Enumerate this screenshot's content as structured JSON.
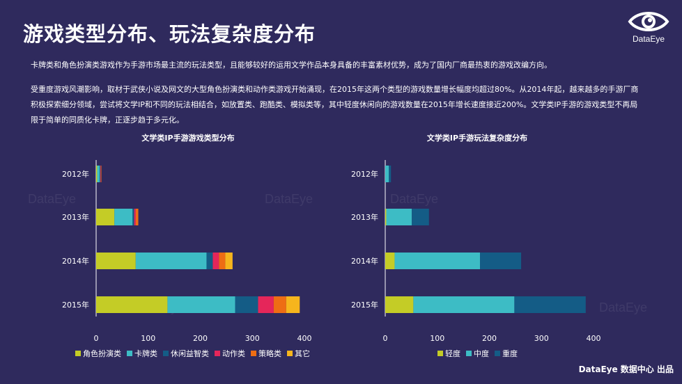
{
  "page": {
    "title": "游戏类型分布、玩法复杂度分布",
    "logo_text": "DataEye",
    "paragraphs": [
      "卡牌类和角色扮演类游戏作为手游市场最主流的玩法类型，且能够较好的运用文学作品本身具备的丰富素材优势，成为了国内厂商最热衷的游戏改编方向。",
      "受重度游戏风潮影响，取材于武侠小说及网文的大型角色扮演类和动作类游戏开始涌现，在2015年这两个类型的游戏数量增长幅度均超过80%。从2014年起，越来越多的手游厂商积极探索细分领域，尝试将文学IP和不同的玩法相结合，如放置类、跑酷类、模拟类等，其中轻度休闲向的游戏数量在2015年增长速度接近200%。文学类IP手游的游戏类型不再局限于简单的同质化卡牌，正逐步趋于多元化。"
    ],
    "watermark": "DataEye",
    "footer": "DataEye 数据中心 出品"
  },
  "chart_data": [
    {
      "type": "bar",
      "orientation": "horizontal",
      "stacked": true,
      "title": "文学类IP手游游戏类型分布",
      "categories": [
        "2012年",
        "2013年",
        "2014年",
        "2015年"
      ],
      "xlim": [
        0,
        400
      ],
      "xticks": [
        0,
        100,
        200,
        300,
        400
      ],
      "legend": "bottom",
      "series": [
        {
          "name": "角色扮演类",
          "color": "#c4cc26",
          "values": [
            2,
            35,
            76,
            137
          ]
        },
        {
          "name": "卡牌类",
          "color": "#3dbcc5",
          "values": [
            5,
            35,
            136,
            130
          ]
        },
        {
          "name": "休闲益智类",
          "color": "#145c86",
          "values": [
            1,
            3,
            12,
            44
          ]
        },
        {
          "name": "动作类",
          "color": "#e5265a",
          "values": [
            1,
            3,
            12,
            30
          ]
        },
        {
          "name": "策略类",
          "color": "#ee6d14",
          "values": [
            1,
            5,
            12,
            24
          ]
        },
        {
          "name": "其它",
          "color": "#f6b51d",
          "values": [
            0,
            0,
            14,
            26
          ]
        }
      ]
    },
    {
      "type": "bar",
      "orientation": "horizontal",
      "stacked": true,
      "title": "文学类IP手游玩法复杂度分布",
      "categories": [
        "2012年",
        "2013年",
        "2014年",
        "2015年"
      ],
      "xlim": [
        0,
        400
      ],
      "xticks": [
        0,
        100,
        200,
        300,
        400
      ],
      "legend": "bottom",
      "series": [
        {
          "name": "轻度",
          "color": "#c4cc26",
          "values": [
            0,
            2,
            18,
            54
          ]
        },
        {
          "name": "中度",
          "color": "#3dbcc5",
          "values": [
            7,
            49,
            164,
            194
          ]
        },
        {
          "name": "重度",
          "color": "#145c86",
          "values": [
            4,
            33,
            79,
            137
          ]
        }
      ]
    }
  ]
}
